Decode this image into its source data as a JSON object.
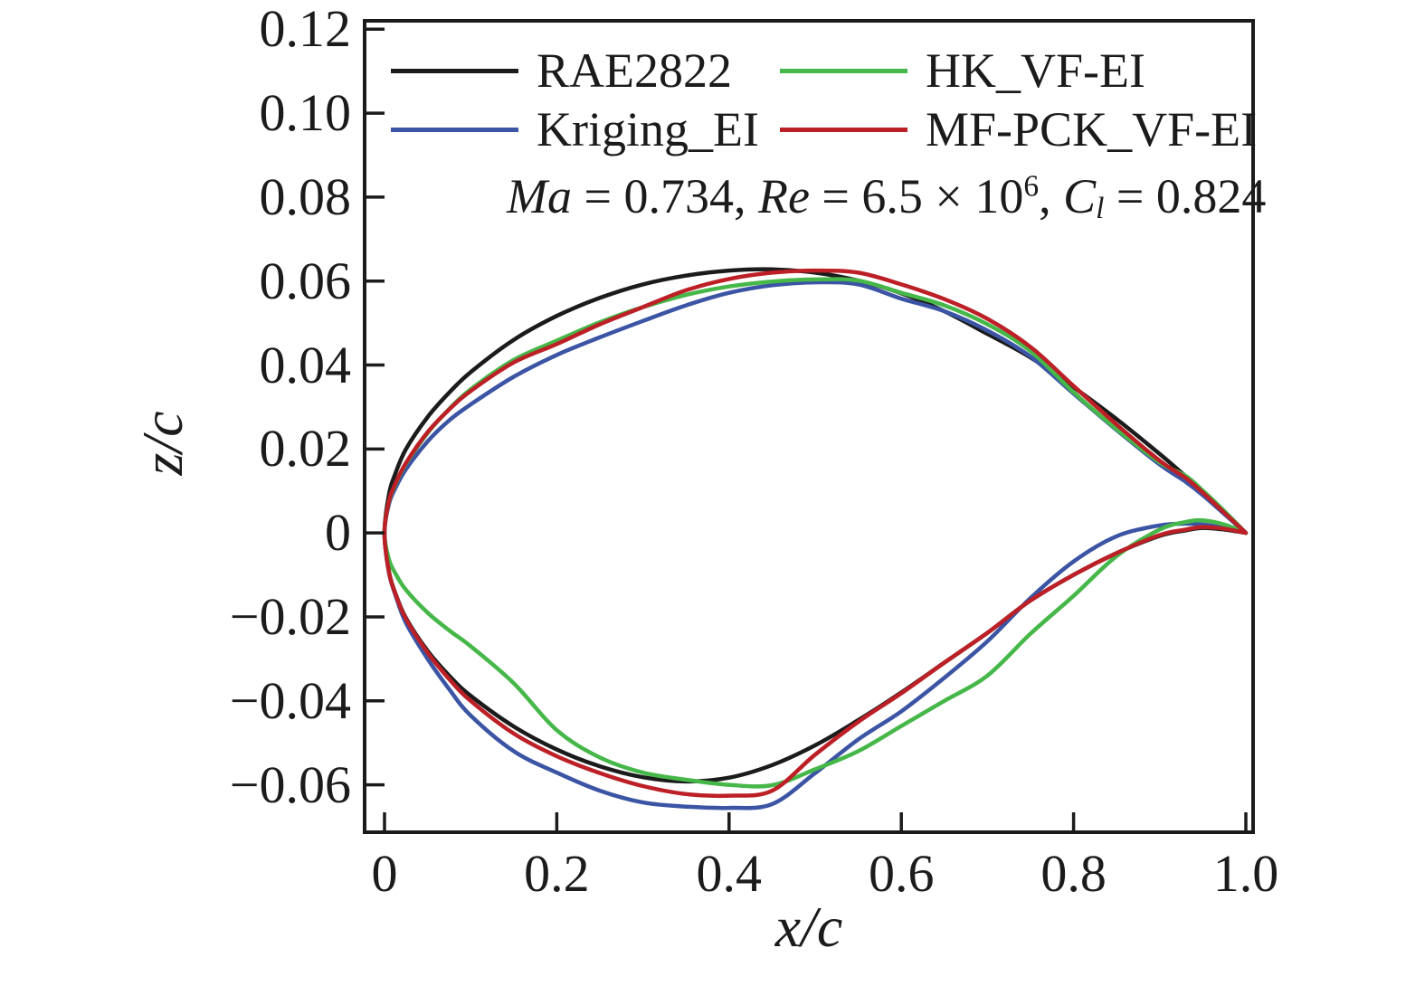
{
  "chart_data": {
    "type": "line",
    "description": "Comparison of RAE2822 baseline airfoil geometry with three optimized airfoil shapes",
    "xlabel": "x/c",
    "ylabel": "z/c",
    "xlim": [
      -0.0231,
      1.0084
    ],
    "ylim": [
      -0.0713,
      0.122
    ],
    "grid": false,
    "legend_position": "upper left, two columns inside axes",
    "frame_color": "#1b1b1b",
    "x_ticks": [
      {
        "v": 0.0,
        "label": "0"
      },
      {
        "v": 0.2,
        "label": "0.2"
      },
      {
        "v": 0.4,
        "label": "0.4"
      },
      {
        "v": 0.6,
        "label": "0.6"
      },
      {
        "v": 0.8,
        "label": "0.8"
      },
      {
        "v": 1.0,
        "label": "1.0"
      }
    ],
    "y_ticks": [
      {
        "v": 0.12,
        "label": "0.12"
      },
      {
        "v": 0.1,
        "label": "0.10"
      },
      {
        "v": 0.08,
        "label": "0.08"
      },
      {
        "v": 0.06,
        "label": "0.06"
      },
      {
        "v": 0.04,
        "label": "0.04"
      },
      {
        "v": 0.02,
        "label": "0.02"
      },
      {
        "v": 0.0,
        "label": "0"
      },
      {
        "v": -0.02,
        "label": "−0.02"
      },
      {
        "v": -0.04,
        "label": "−0.04"
      },
      {
        "v": -0.06,
        "label": "−0.06"
      }
    ],
    "annotation_segments": [
      {
        "text": "Ma",
        "style": "italic"
      },
      {
        "text": " = 0.734, ",
        "style": "normal"
      },
      {
        "text": "Re",
        "style": "italic"
      },
      {
        "text": " = 6.5 × 10",
        "style": "normal"
      },
      {
        "text": "6",
        "style": "superscript"
      },
      {
        "text": ", ",
        "style": "normal"
      },
      {
        "text": "C",
        "style": "italic"
      },
      {
        "text": "l",
        "style": "subscript"
      },
      {
        "text": " = 0.824",
        "style": "normal"
      }
    ],
    "legend": [
      {
        "label": "RAE2822",
        "color": "#1b1b1b",
        "row": 0,
        "col": 0
      },
      {
        "label": "Kriging_EI",
        "color": "#3b54a4",
        "row": 1,
        "col": 0
      },
      {
        "label": "HK_VF-EI",
        "color": "#46b749",
        "row": 0,
        "col": 1
      },
      {
        "label": "MF-PCK_VF-EI",
        "color": "#bc2026",
        "row": 1,
        "col": 1
      }
    ],
    "series": [
      {
        "name": "RAE2822",
        "color": "#1b1b1b",
        "upper": [
          [
            0,
            0
          ],
          [
            0.005,
            0.009
          ],
          [
            0.0125,
            0.0141
          ],
          [
            0.025,
            0.02
          ],
          [
            0.05,
            0.0276
          ],
          [
            0.075,
            0.0334
          ],
          [
            0.1,
            0.0383
          ],
          [
            0.15,
            0.046
          ],
          [
            0.2,
            0.0517
          ],
          [
            0.25,
            0.056
          ],
          [
            0.3,
            0.0592
          ],
          [
            0.35,
            0.0613
          ],
          [
            0.4,
            0.0625
          ],
          [
            0.45,
            0.0628
          ],
          [
            0.5,
            0.062
          ],
          [
            0.55,
            0.0601
          ],
          [
            0.6,
            0.0571
          ],
          [
            0.65,
            0.0528
          ],
          [
            0.7,
            0.0474
          ],
          [
            0.75,
            0.0418
          ],
          [
            0.8,
            0.0347
          ],
          [
            0.85,
            0.0271
          ],
          [
            0.9,
            0.0188
          ],
          [
            0.93,
            0.0135
          ],
          [
            0.95,
            0.0098
          ],
          [
            0.975,
            0.005
          ],
          [
            1,
            0
          ]
        ],
        "lower": [
          [
            0,
            0
          ],
          [
            0.005,
            -0.0091
          ],
          [
            0.0125,
            -0.0143
          ],
          [
            0.025,
            -0.0203
          ],
          [
            0.05,
            -0.0281
          ],
          [
            0.075,
            -0.034
          ],
          [
            0.1,
            -0.0388
          ],
          [
            0.15,
            -0.0461
          ],
          [
            0.2,
            -0.0516
          ],
          [
            0.25,
            -0.0556
          ],
          [
            0.3,
            -0.0582
          ],
          [
            0.35,
            -0.0592
          ],
          [
            0.4,
            -0.0583
          ],
          [
            0.45,
            -0.0553
          ],
          [
            0.5,
            -0.0506
          ],
          [
            0.55,
            -0.0446
          ],
          [
            0.6,
            -0.038
          ],
          [
            0.65,
            -0.0309
          ],
          [
            0.7,
            -0.0238
          ],
          [
            0.75,
            -0.0161
          ],
          [
            0.8,
            -0.01
          ],
          [
            0.85,
            -0.0048
          ],
          [
            0.9,
            -0.0007
          ],
          [
            0.93,
            0.0006
          ],
          [
            0.95,
            0.0012
          ],
          [
            0.975,
            0.0008
          ],
          [
            1,
            0
          ]
        ]
      },
      {
        "name": "Kriging_EI",
        "color": "#3b54a4",
        "upper": [
          [
            0,
            0
          ],
          [
            0.005,
            0.0068
          ],
          [
            0.0125,
            0.0106
          ],
          [
            0.025,
            0.0152
          ],
          [
            0.05,
            0.0218
          ],
          [
            0.075,
            0.0268
          ],
          [
            0.1,
            0.0306
          ],
          [
            0.15,
            0.0372
          ],
          [
            0.2,
            0.0424
          ],
          [
            0.25,
            0.0466
          ],
          [
            0.3,
            0.0505
          ],
          [
            0.35,
            0.0542
          ],
          [
            0.4,
            0.0572
          ],
          [
            0.45,
            0.059
          ],
          [
            0.5,
            0.0597
          ],
          [
            0.55,
            0.0592
          ],
          [
            0.6,
            0.0558
          ],
          [
            0.65,
            0.0528
          ],
          [
            0.7,
            0.0482
          ],
          [
            0.75,
            0.042
          ],
          [
            0.8,
            0.0332
          ],
          [
            0.85,
            0.0245
          ],
          [
            0.9,
            0.0163
          ],
          [
            0.93,
            0.0122
          ],
          [
            0.95,
            0.009
          ],
          [
            0.975,
            0.0045
          ],
          [
            1,
            0
          ]
        ],
        "lower": [
          [
            0,
            0
          ],
          [
            0.005,
            -0.0093
          ],
          [
            0.0125,
            -0.0147
          ],
          [
            0.025,
            -0.0215
          ],
          [
            0.05,
            -0.03
          ],
          [
            0.075,
            -0.0372
          ],
          [
            0.1,
            -0.0435
          ],
          [
            0.15,
            -0.052
          ],
          [
            0.2,
            -0.0571
          ],
          [
            0.25,
            -0.0614
          ],
          [
            0.3,
            -0.0642
          ],
          [
            0.35,
            -0.0652
          ],
          [
            0.4,
            -0.0655
          ],
          [
            0.45,
            -0.0646
          ],
          [
            0.5,
            -0.0572
          ],
          [
            0.55,
            -0.0492
          ],
          [
            0.6,
            -0.0425
          ],
          [
            0.65,
            -0.0345
          ],
          [
            0.7,
            -0.0258
          ],
          [
            0.75,
            -0.0155
          ],
          [
            0.8,
            -0.0068
          ],
          [
            0.85,
            -0.0008
          ],
          [
            0.9,
            0.0018
          ],
          [
            0.93,
            0.0022
          ],
          [
            0.95,
            0.002
          ],
          [
            0.975,
            0.0012
          ],
          [
            1,
            0
          ]
        ]
      },
      {
        "name": "HK_VF-EI",
        "color": "#46b749",
        "upper": [
          [
            0,
            0
          ],
          [
            0.005,
            0.0074
          ],
          [
            0.0125,
            0.0115
          ],
          [
            0.025,
            0.0165
          ],
          [
            0.05,
            0.0238
          ],
          [
            0.075,
            0.0295
          ],
          [
            0.1,
            0.0342
          ],
          [
            0.15,
            0.0412
          ],
          [
            0.2,
            0.0458
          ],
          [
            0.25,
            0.0502
          ],
          [
            0.3,
            0.0538
          ],
          [
            0.35,
            0.0567
          ],
          [
            0.4,
            0.0587
          ],
          [
            0.45,
            0.0599
          ],
          [
            0.5,
            0.0604
          ],
          [
            0.55,
            0.0601
          ],
          [
            0.6,
            0.0572
          ],
          [
            0.65,
            0.0542
          ],
          [
            0.7,
            0.0497
          ],
          [
            0.75,
            0.0433
          ],
          [
            0.8,
            0.0335
          ],
          [
            0.85,
            0.0247
          ],
          [
            0.9,
            0.0168
          ],
          [
            0.93,
            0.0136
          ],
          [
            0.95,
            0.0101
          ],
          [
            0.975,
            0.0052
          ],
          [
            1,
            0
          ]
        ],
        "lower": [
          [
            0,
            0
          ],
          [
            0.005,
            -0.0062
          ],
          [
            0.0125,
            -0.0096
          ],
          [
            0.025,
            -0.0136
          ],
          [
            0.05,
            -0.019
          ],
          [
            0.075,
            -0.0232
          ],
          [
            0.1,
            -0.027
          ],
          [
            0.15,
            -0.0358
          ],
          [
            0.2,
            -0.047
          ],
          [
            0.25,
            -0.0535
          ],
          [
            0.3,
            -0.0571
          ],
          [
            0.35,
            -0.0588
          ],
          [
            0.4,
            -0.06
          ],
          [
            0.45,
            -0.0601
          ],
          [
            0.5,
            -0.0563
          ],
          [
            0.55,
            -0.052
          ],
          [
            0.6,
            -0.046
          ],
          [
            0.65,
            -0.04
          ],
          [
            0.7,
            -0.034
          ],
          [
            0.75,
            -0.024
          ],
          [
            0.8,
            -0.015
          ],
          [
            0.85,
            -0.0055
          ],
          [
            0.9,
            0.0008
          ],
          [
            0.93,
            0.0026
          ],
          [
            0.95,
            0.003
          ],
          [
            0.975,
            0.002
          ],
          [
            1,
            0
          ]
        ]
      },
      {
        "name": "MF-PCK_VF-EI",
        "color": "#bc2026",
        "upper": [
          [
            0,
            0
          ],
          [
            0.005,
            0.0075
          ],
          [
            0.0125,
            0.0117
          ],
          [
            0.025,
            0.0167
          ],
          [
            0.05,
            0.024
          ],
          [
            0.075,
            0.0294
          ],
          [
            0.1,
            0.0338
          ],
          [
            0.15,
            0.0406
          ],
          [
            0.2,
            0.045
          ],
          [
            0.25,
            0.0497
          ],
          [
            0.3,
            0.0538
          ],
          [
            0.35,
            0.0578
          ],
          [
            0.4,
            0.0605
          ],
          [
            0.45,
            0.062
          ],
          [
            0.5,
            0.0625
          ],
          [
            0.55,
            0.062
          ],
          [
            0.6,
            0.0592
          ],
          [
            0.65,
            0.0557
          ],
          [
            0.7,
            0.051
          ],
          [
            0.75,
            0.0443
          ],
          [
            0.8,
            0.035
          ],
          [
            0.85,
            0.0258
          ],
          [
            0.9,
            0.0172
          ],
          [
            0.93,
            0.0131
          ],
          [
            0.95,
            0.0096
          ],
          [
            0.975,
            0.0048
          ],
          [
            1,
            0
          ]
        ],
        "lower": [
          [
            0,
            0
          ],
          [
            0.005,
            -0.0092
          ],
          [
            0.0125,
            -0.0144
          ],
          [
            0.025,
            -0.0205
          ],
          [
            0.05,
            -0.0285
          ],
          [
            0.075,
            -0.0348
          ],
          [
            0.1,
            -0.04
          ],
          [
            0.15,
            -0.0478
          ],
          [
            0.2,
            -0.0532
          ],
          [
            0.25,
            -0.0572
          ],
          [
            0.3,
            -0.0603
          ],
          [
            0.35,
            -0.0622
          ],
          [
            0.4,
            -0.0626
          ],
          [
            0.45,
            -0.0614
          ],
          [
            0.5,
            -0.0528
          ],
          [
            0.55,
            -0.045
          ],
          [
            0.6,
            -0.0382
          ],
          [
            0.65,
            -0.0309
          ],
          [
            0.7,
            -0.0238
          ],
          [
            0.75,
            -0.0161
          ],
          [
            0.8,
            -0.01
          ],
          [
            0.85,
            -0.0048
          ],
          [
            0.9,
            -0.0005
          ],
          [
            0.93,
            0.0008
          ],
          [
            0.95,
            0.0014
          ],
          [
            0.975,
            0.001
          ],
          [
            1,
            0
          ]
        ]
      }
    ]
  }
}
